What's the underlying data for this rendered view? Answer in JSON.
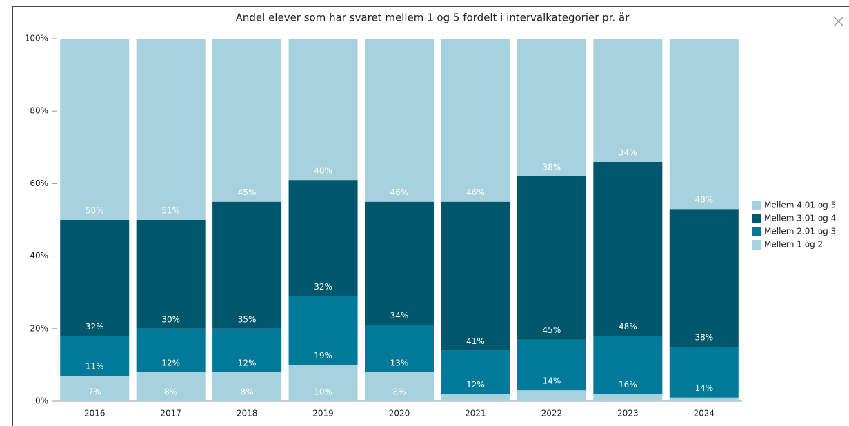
{
  "chart_data": {
    "type": "stacked_bar",
    "title": "Andel elever som har svaret mellem 1 og 5 fordelt i intervalkategorier pr. år",
    "categories": [
      "2016",
      "2017",
      "2018",
      "2019",
      "2020",
      "2021",
      "2022",
      "2023",
      "2024"
    ],
    "series": [
      {
        "name": "Mellem 1 og 2",
        "color": "#a8d1de",
        "values": [
          7,
          8,
          8,
          10,
          8,
          2,
          3,
          2,
          1
        ],
        "value_labels": [
          "7%",
          "8%",
          "8%",
          "10%",
          "8%",
          null,
          null,
          null,
          null
        ]
      },
      {
        "name": "Mellem 2,01 og 3",
        "color": "#007a98",
        "values": [
          11,
          12,
          12,
          19,
          13,
          12,
          14,
          16,
          14
        ],
        "value_labels": [
          "11%",
          "12%",
          "12%",
          "19%",
          "13%",
          "12%",
          "14%",
          "16%",
          "14%"
        ]
      },
      {
        "name": "Mellem 3,01 og 4",
        "color": "#00566b",
        "values": [
          32,
          30,
          35,
          32,
          34,
          41,
          45,
          48,
          38
        ],
        "value_labels": [
          "32%",
          "30%",
          "35%",
          "32%",
          "34%",
          "41%",
          "45%",
          "48%",
          "38%"
        ]
      },
      {
        "name": "Mellem 4,01 og 5",
        "color": "#a8d1de",
        "values": [
          50,
          51,
          45,
          40,
          46,
          46,
          38,
          34,
          48
        ],
        "value_labels": [
          "50%",
          "51%",
          "45%",
          "40%",
          "46%",
          "46%",
          "38%",
          "34%",
          "48%"
        ]
      }
    ],
    "ylim": [
      0,
      100
    ],
    "yticks": [
      {
        "value": 0,
        "label": "0%"
      },
      {
        "value": 20,
        "label": "20%"
      },
      {
        "value": 40,
        "label": "40%"
      },
      {
        "value": 60,
        "label": "60%"
      },
      {
        "value": 80,
        "label": "80%"
      },
      {
        "value": 100,
        "label": "100%"
      }
    ],
    "legend": "right"
  }
}
